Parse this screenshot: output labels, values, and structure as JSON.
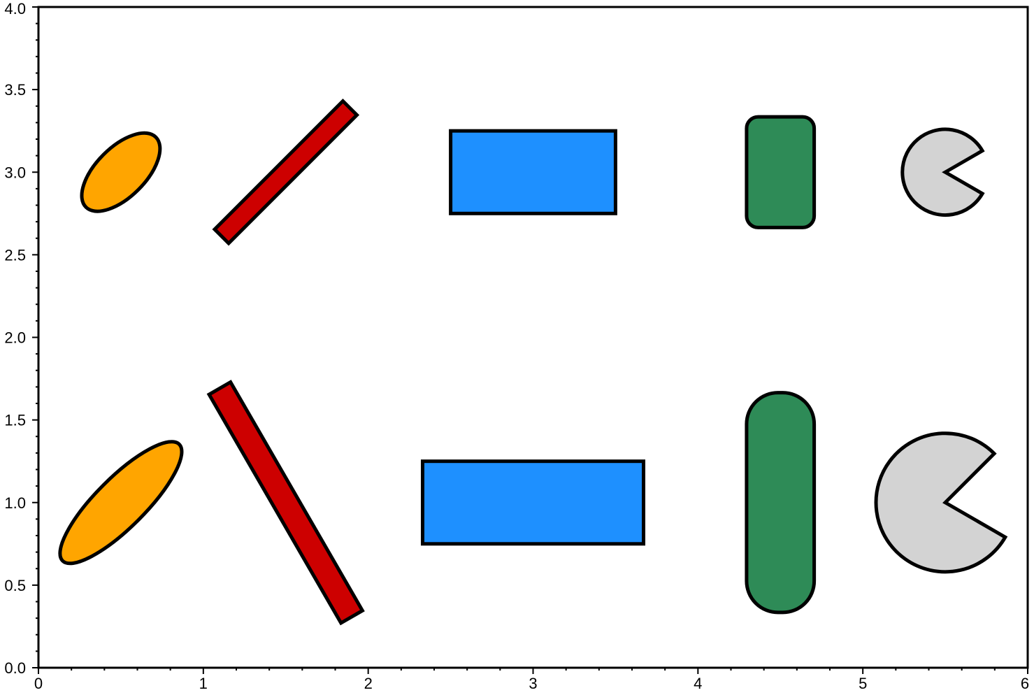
{
  "chart_data": {
    "type": "scatter",
    "title": "",
    "xlabel": "",
    "ylabel": "",
    "xlim": [
      0,
      6
    ],
    "ylim": [
      0,
      4
    ],
    "grid": false,
    "x_ticks": [
      "0",
      "1",
      "2",
      "3",
      "4",
      "5",
      "6"
    ],
    "y_ticks": [
      "0.0",
      "0.5",
      "1.0",
      "1.5",
      "2.0",
      "2.5",
      "3.0",
      "3.5",
      "4.0"
    ],
    "symbols": [
      {
        "kind": "ellipse",
        "x": 0.5,
        "y": 3.0,
        "angle_deg": 45,
        "major": 0.6,
        "minor": 0.3,
        "color": "#FFA500"
      },
      {
        "kind": "rotated-rectangle",
        "x": 1.5,
        "y": 3.0,
        "angle_deg": 45,
        "width": 1.1,
        "height": 0.12,
        "color": "#CD0000"
      },
      {
        "kind": "rectangle",
        "x": 3.0,
        "y": 3.0,
        "width": 1.0,
        "height": 0.5,
        "color": "#1E90FF"
      },
      {
        "kind": "rounded-rectangle",
        "x": 4.5,
        "y": 3.0,
        "width": 0.41,
        "height": 0.67,
        "radius": 0.07,
        "color": "#2E8B57"
      },
      {
        "kind": "wedge",
        "x": 5.5,
        "y": 3.0,
        "radius": 0.26,
        "start_deg": -30,
        "end_deg": 30,
        "color": "#D3D3D3"
      },
      {
        "kind": "ellipse",
        "x": 0.5,
        "y": 1.0,
        "angle_deg": 45,
        "major": 1.0,
        "minor": 0.3,
        "color": "#FFA500"
      },
      {
        "kind": "rotated-rectangle",
        "x": 1.5,
        "y": 1.0,
        "angle_deg": -60,
        "width": 1.6,
        "height": 0.15,
        "color": "#CD0000"
      },
      {
        "kind": "rectangle",
        "x": 3.0,
        "y": 1.0,
        "width": 1.34,
        "height": 0.5,
        "color": "#1E90FF"
      },
      {
        "kind": "rounded-rectangle",
        "x": 4.5,
        "y": 1.0,
        "width": 0.41,
        "height": 1.33,
        "radius": 0.19,
        "color": "#2E8B57"
      },
      {
        "kind": "wedge",
        "x": 5.5,
        "y": 1.0,
        "radius": 0.42,
        "start_deg": -30,
        "end_deg": 45,
        "color": "#D3D3D3"
      }
    ]
  }
}
